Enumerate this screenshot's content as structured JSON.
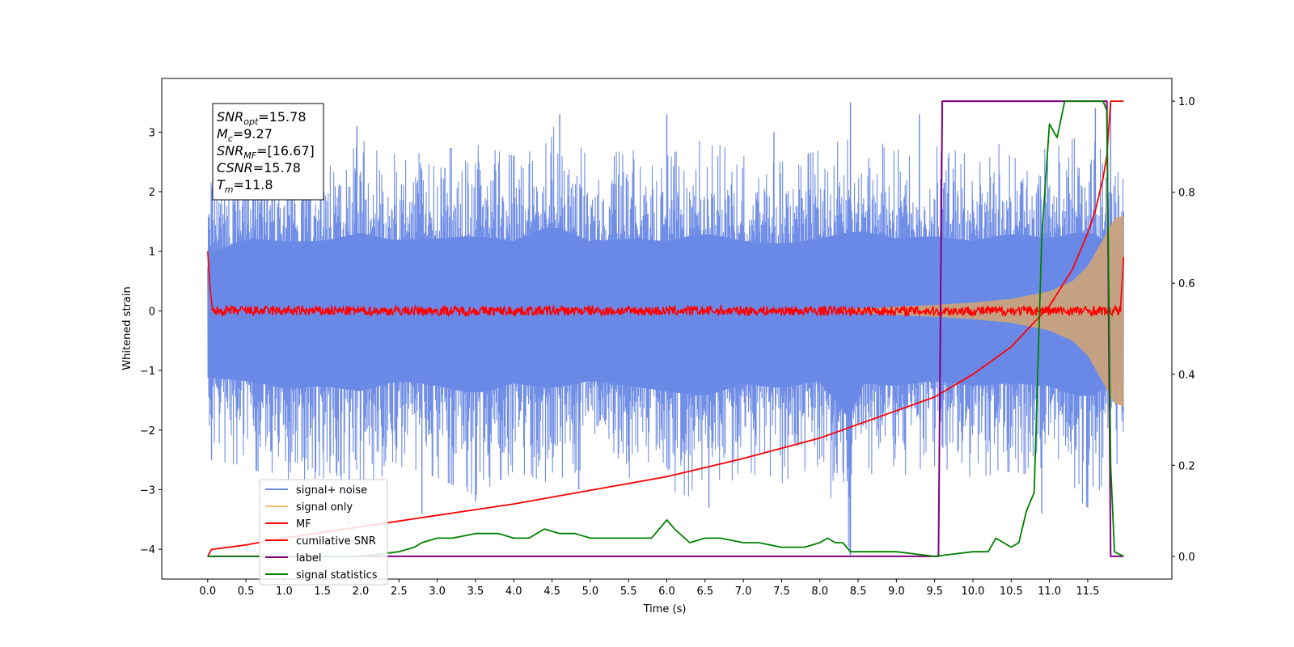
{
  "chart_data": {
    "type": "line",
    "xlabel": "Time (s)",
    "ylabel_left": "Whitened strain",
    "ylabel_right": "",
    "xlim": [
      -0.6,
      12.6
    ],
    "ylim_left": [
      -4.5,
      3.9
    ],
    "ylim_right": [
      -0.05,
      1.05
    ],
    "x_ticks": [
      "0.0",
      "0.5",
      "1.0",
      "1.5",
      "2.0",
      "2.5",
      "3.0",
      "3.5",
      "4.0",
      "4.5",
      "5.0",
      "5.5",
      "6.0",
      "6.5",
      "7.0",
      "7.5",
      "8.0",
      "8.5",
      "9.0",
      "9.5",
      "10.0",
      "10.5",
      "11.0",
      "11.5"
    ],
    "y_ticks_left": [
      "3",
      "2",
      "1",
      "0",
      "−1",
      "−2",
      "−3",
      "−4"
    ],
    "y_ticks_right": [
      "0.0",
      "0.2",
      "0.4",
      "0.6",
      "0.8",
      "1.0"
    ],
    "grid": false,
    "legend_position": "lower-left",
    "colors": {
      "signal_noise": "#6a89e6",
      "signal_only": "#f5c36b",
      "signal_overlap": "#c8a27c",
      "mf": "#ff0000",
      "csnr": "#ff0000",
      "label": "#800080",
      "stats": "#008000"
    },
    "annotations": {
      "snr_opt_main": "SNR",
      "snr_opt_sub": "opt",
      "snr_opt_value": "=15.78",
      "mc_main": "M",
      "mc_sub": "c",
      "mc_value": "=9.27",
      "snr_mf_main": "SNR",
      "snr_mf_sub": "MF",
      "snr_mf_value": "=[16.67]",
      "csnr_main": "CSNR",
      "csnr_value": "=15.78",
      "tm_main": "T",
      "tm_sub": "m",
      "tm_value": "=11.8"
    },
    "series": [
      {
        "name": "signal+ noise",
        "axis": "left",
        "envelope_upper": [
          [
            0.0,
            2.1
          ],
          [
            0.5,
            2.7
          ],
          [
            1.0,
            2.6
          ],
          [
            1.5,
            2.6
          ],
          [
            2.0,
            2.9
          ],
          [
            2.5,
            2.6
          ],
          [
            3.0,
            2.7
          ],
          [
            3.5,
            2.8
          ],
          [
            4.0,
            2.6
          ],
          [
            4.5,
            3.2
          ],
          [
            5.0,
            2.6
          ],
          [
            5.5,
            2.7
          ],
          [
            6.0,
            2.6
          ],
          [
            6.5,
            2.9
          ],
          [
            7.0,
            2.6
          ],
          [
            7.5,
            2.5
          ],
          [
            8.0,
            2.7
          ],
          [
            8.5,
            3.0
          ],
          [
            9.0,
            2.7
          ],
          [
            9.5,
            2.8
          ],
          [
            10.0,
            2.6
          ],
          [
            10.5,
            2.9
          ],
          [
            11.0,
            2.7
          ],
          [
            11.5,
            3.0
          ],
          [
            11.97,
            2.2
          ]
        ],
        "envelope_lower": [
          [
            0.0,
            -2.5
          ],
          [
            0.5,
            -2.6
          ],
          [
            1.0,
            -2.9
          ],
          [
            1.5,
            -2.8
          ],
          [
            2.0,
            -3.0
          ],
          [
            2.5,
            -2.6
          ],
          [
            3.0,
            -2.8
          ],
          [
            3.5,
            -3.1
          ],
          [
            4.0,
            -2.7
          ],
          [
            4.5,
            -2.9
          ],
          [
            5.0,
            -2.6
          ],
          [
            5.5,
            -2.8
          ],
          [
            6.0,
            -3.0
          ],
          [
            6.5,
            -3.2
          ],
          [
            7.0,
            -2.7
          ],
          [
            7.5,
            -2.9
          ],
          [
            8.0,
            -2.6
          ],
          [
            8.4,
            -4.1
          ],
          [
            8.5,
            -2.7
          ],
          [
            9.0,
            -2.8
          ],
          [
            9.5,
            -2.6
          ],
          [
            10.0,
            -2.8
          ],
          [
            10.5,
            -2.7
          ],
          [
            11.0,
            -2.8
          ],
          [
            11.5,
            -3.3
          ],
          [
            11.97,
            -2.4
          ]
        ],
        "spikes_up": [
          [
            0.02,
            1.6
          ],
          [
            0.7,
            2.6
          ],
          [
            1.95,
            3.1
          ],
          [
            3.1,
            2.4
          ],
          [
            4.6,
            3.3
          ],
          [
            6.0,
            3.3
          ],
          [
            7.4,
            3.0
          ],
          [
            8.4,
            3.5
          ],
          [
            9.3,
            3.3
          ],
          [
            11.6,
            3.4
          ],
          [
            11.8,
            3.5
          ]
        ],
        "spikes_down": [
          [
            0.05,
            -2.5
          ],
          [
            1.85,
            -3.6
          ],
          [
            2.8,
            -3.4
          ],
          [
            3.5,
            -3.2
          ],
          [
            4.85,
            -3.0
          ],
          [
            6.55,
            -3.3
          ],
          [
            8.4,
            -4.1
          ],
          [
            10.9,
            -3.4
          ],
          [
            11.5,
            -3.3
          ]
        ]
      },
      {
        "name": "signal only",
        "axis": "left",
        "chirp_start": 8.3,
        "chirp_end": 11.97,
        "amplitude_points": [
          [
            8.3,
            0.02
          ],
          [
            9.0,
            0.07
          ],
          [
            9.5,
            0.1
          ],
          [
            10.0,
            0.14
          ],
          [
            10.5,
            0.2
          ],
          [
            11.0,
            0.33
          ],
          [
            11.3,
            0.5
          ],
          [
            11.5,
            0.75
          ],
          [
            11.7,
            1.2
          ],
          [
            11.85,
            1.55
          ],
          [
            11.97,
            1.6
          ]
        ]
      },
      {
        "name": "MF",
        "axis": "left",
        "base_level": 0.0,
        "noise_amplitude": 0.08,
        "start_spike": [
          [
            0.0,
            1.0
          ],
          [
            0.03,
            0.4
          ],
          [
            0.06,
            0.05
          ]
        ],
        "end_spike": [
          [
            11.93,
            0.1
          ],
          [
            11.97,
            0.9
          ]
        ]
      },
      {
        "name": "cumilative SNR",
        "axis": "right",
        "x": [
          0.0,
          0.05,
          0.5,
          1.0,
          2.0,
          3.0,
          4.0,
          5.0,
          6.0,
          7.0,
          8.0,
          8.5,
          9.0,
          9.5,
          10.0,
          10.5,
          11.0,
          11.3,
          11.5,
          11.6,
          11.7,
          11.75,
          11.8,
          11.9,
          11.97
        ],
        "y": [
          0.0,
          0.015,
          0.025,
          0.04,
          0.065,
          0.09,
          0.115,
          0.145,
          0.175,
          0.215,
          0.26,
          0.29,
          0.32,
          0.35,
          0.4,
          0.46,
          0.55,
          0.63,
          0.71,
          0.76,
          0.83,
          0.88,
          1.0,
          1.0,
          1.0
        ]
      },
      {
        "name": "label",
        "axis": "right",
        "x": [
          0.0,
          9.55,
          9.6,
          11.75,
          11.8,
          11.97
        ],
        "y": [
          0.0,
          0.0,
          1.0,
          1.0,
          0.0,
          0.0
        ]
      },
      {
        "name": "signal statistics",
        "axis": "right",
        "x": [
          0.0,
          1.0,
          2.0,
          2.5,
          2.7,
          2.8,
          3.0,
          3.2,
          3.5,
          3.8,
          4.0,
          4.2,
          4.3,
          4.4,
          4.6,
          4.8,
          5.0,
          5.3,
          5.5,
          5.8,
          6.0,
          6.1,
          6.3,
          6.5,
          6.7,
          7.0,
          7.2,
          7.5,
          7.8,
          8.0,
          8.1,
          8.2,
          8.3,
          8.4,
          8.5,
          8.8,
          9.0,
          9.5,
          10.0,
          10.2,
          10.3,
          10.5,
          10.6,
          10.7,
          10.8,
          10.9,
          11.0,
          11.1,
          11.2,
          11.5,
          11.7,
          11.75,
          11.8,
          11.85,
          11.97
        ],
        "y": [
          0.0,
          0.0,
          0.0,
          0.01,
          0.02,
          0.03,
          0.04,
          0.04,
          0.05,
          0.05,
          0.04,
          0.04,
          0.05,
          0.06,
          0.05,
          0.05,
          0.04,
          0.04,
          0.04,
          0.04,
          0.08,
          0.06,
          0.03,
          0.04,
          0.04,
          0.03,
          0.03,
          0.02,
          0.02,
          0.03,
          0.04,
          0.03,
          0.03,
          0.01,
          0.01,
          0.01,
          0.01,
          0.0,
          0.01,
          0.01,
          0.04,
          0.02,
          0.03,
          0.1,
          0.14,
          0.7,
          0.95,
          0.92,
          1.0,
          1.0,
          1.0,
          0.98,
          0.2,
          0.01,
          0.0
        ]
      }
    ]
  }
}
